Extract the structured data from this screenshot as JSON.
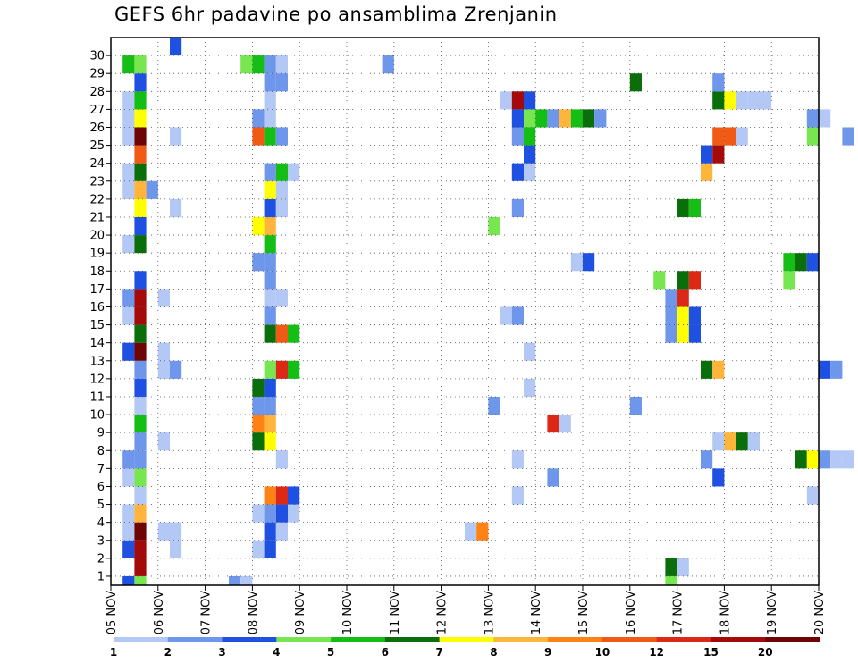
{
  "chart_data": {
    "type": "heatmap",
    "title": "GEFS 6hr padavine po ansamblima Zrenjanin",
    "members": [
      "1",
      "2",
      "3",
      "4",
      "5",
      "6",
      "7",
      "8",
      "9",
      "10",
      "11",
      "12",
      "13",
      "14",
      "15",
      "16",
      "17",
      "18",
      "19",
      "20",
      "21",
      "22",
      "23",
      "24",
      "25",
      "26",
      "27",
      "28",
      "29",
      "30"
    ],
    "x_tick_labels": [
      "05 NOV",
      "06 NOV",
      "07 NOV",
      "08 NOV",
      "09 NOV",
      "10 NOV",
      "11 NOV",
      "12 NOV",
      "13 NOV",
      "14 NOV",
      "15 NOV",
      "16 NOV",
      "17 NOV",
      "18 NOV",
      "19 NOV",
      "20 NOV"
    ],
    "x_range_days": [
      0,
      15
    ],
    "time_step_hours": 6,
    "grid": true,
    "colorbar": {
      "levels": [
        "1",
        "2",
        "3",
        "4",
        "5",
        "6",
        "7",
        "8",
        "9",
        "10",
        "12",
        "15",
        "20"
      ],
      "colors": [
        "#b4c8f5",
        "#6e96eb",
        "#1e50e1",
        "#78e650",
        "#14be14",
        "#0a6e0a",
        "#ffff00",
        "#ffb43c",
        "#ff8214",
        "#f05a14",
        "#dc2814",
        "#a50a0a",
        "#6e0505"
      ]
    },
    "cells": {
      "30": [
        [
          6,
          3
        ]
      ],
      "29": [
        [
          2,
          5
        ],
        [
          3,
          4
        ],
        [
          12,
          4
        ],
        [
          13,
          5
        ],
        [
          14,
          2
        ],
        [
          15,
          1
        ],
        [
          24,
          2
        ],
        [
          69,
          3
        ],
        [
          70,
          7
        ],
        [
          84,
          1
        ]
      ],
      "28": [
        [
          3,
          3
        ],
        [
          14,
          2
        ],
        [
          15,
          2
        ],
        [
          45,
          6
        ],
        [
          52,
          2
        ]
      ],
      "27": [
        [
          2,
          1
        ],
        [
          3,
          5
        ],
        [
          14,
          1
        ],
        [
          34,
          1
        ],
        [
          35,
          12
        ],
        [
          36,
          3
        ],
        [
          52,
          6
        ],
        [
          53,
          7
        ],
        [
          54,
          1
        ],
        [
          55,
          1
        ],
        [
          56,
          1
        ]
      ],
      "26": [
        [
          2,
          1
        ],
        [
          3,
          7
        ],
        [
          13,
          2
        ],
        [
          14,
          1
        ],
        [
          35,
          3
        ],
        [
          36,
          4
        ],
        [
          37,
          5
        ],
        [
          38,
          2
        ],
        [
          39,
          8
        ],
        [
          40,
          5
        ],
        [
          41,
          6
        ],
        [
          42,
          2
        ],
        [
          60,
          2
        ],
        [
          61,
          1
        ]
      ],
      "25": [
        [
          2,
          1
        ],
        [
          3,
          13
        ],
        [
          6,
          1
        ],
        [
          13,
          10
        ],
        [
          14,
          5
        ],
        [
          15,
          2
        ],
        [
          35,
          2
        ],
        [
          36,
          5
        ],
        [
          52,
          10
        ],
        [
          53,
          10
        ],
        [
          54,
          1
        ],
        [
          60,
          4
        ],
        [
          63,
          2
        ],
        [
          66,
          1
        ],
        [
          76,
          13
        ],
        [
          77,
          10
        ],
        [
          79,
          3
        ],
        [
          80,
          2
        ]
      ],
      "24": [
        [
          3,
          10
        ],
        [
          36,
          3
        ],
        [
          51,
          3
        ],
        [
          52,
          12
        ]
      ],
      "23": [
        [
          2,
          1
        ],
        [
          3,
          6
        ],
        [
          14,
          2
        ],
        [
          15,
          5
        ],
        [
          16,
          1
        ],
        [
          35,
          3
        ],
        [
          36,
          1
        ],
        [
          51,
          8
        ],
        [
          74,
          2
        ]
      ],
      "22": [
        [
          2,
          1
        ],
        [
          3,
          8
        ],
        [
          4,
          2
        ],
        [
          14,
          7
        ],
        [
          15,
          1
        ],
        [
          65,
          1
        ],
        [
          66,
          6
        ],
        [
          68,
          1
        ]
      ],
      "21": [
        [
          3,
          7
        ],
        [
          6,
          1
        ],
        [
          14,
          3
        ],
        [
          15,
          1
        ],
        [
          35,
          2
        ],
        [
          49,
          6
        ],
        [
          50,
          5
        ],
        [
          87,
          2
        ]
      ],
      "20": [
        [
          3,
          3
        ],
        [
          13,
          7
        ],
        [
          14,
          8
        ],
        [
          33,
          4
        ]
      ],
      "19": [
        [
          2,
          1
        ],
        [
          3,
          6
        ],
        [
          14,
          5
        ],
        [
          80,
          1
        ]
      ],
      "18": [
        [
          13,
          2
        ],
        [
          14,
          2
        ],
        [
          40,
          1
        ],
        [
          41,
          3
        ],
        [
          58,
          5
        ],
        [
          59,
          6
        ],
        [
          60,
          3
        ],
        [
          65,
          1
        ],
        [
          66,
          2
        ],
        [
          74,
          2
        ],
        [
          75,
          1
        ],
        [
          77,
          1
        ],
        [
          78,
          6
        ],
        [
          79,
          5
        ],
        [
          80,
          3
        ],
        [
          81,
          1
        ],
        [
          82,
          5
        ]
      ],
      "17": [
        [
          3,
          3
        ],
        [
          14,
          2
        ],
        [
          47,
          4
        ],
        [
          49,
          6
        ],
        [
          50,
          11
        ],
        [
          58,
          4
        ]
      ],
      "16": [
        [
          2,
          2
        ],
        [
          3,
          12
        ],
        [
          5,
          1
        ],
        [
          14,
          1
        ],
        [
          15,
          1
        ],
        [
          48,
          2
        ],
        [
          49,
          11
        ]
      ],
      "15": [
        [
          2,
          1
        ],
        [
          3,
          12
        ],
        [
          14,
          2
        ],
        [
          34,
          1
        ],
        [
          35,
          2
        ],
        [
          48,
          2
        ],
        [
          49,
          7
        ],
        [
          50,
          3
        ]
      ],
      "14": [
        [
          3,
          6
        ],
        [
          14,
          6
        ],
        [
          15,
          10
        ],
        [
          16,
          5
        ],
        [
          48,
          2
        ],
        [
          49,
          7
        ],
        [
          50,
          3
        ]
      ],
      "13": [
        [
          2,
          3
        ],
        [
          3,
          13
        ],
        [
          5,
          1
        ],
        [
          36,
          1
        ],
        [
          74,
          1
        ]
      ],
      "12": [
        [
          3,
          2
        ],
        [
          5,
          1
        ],
        [
          6,
          2
        ],
        [
          14,
          4
        ],
        [
          15,
          11
        ],
        [
          16,
          5
        ],
        [
          51,
          6
        ],
        [
          52,
          8
        ],
        [
          61,
          3
        ],
        [
          62,
          2
        ],
        [
          80,
          4
        ]
      ],
      "11": [
        [
          3,
          3
        ],
        [
          13,
          6
        ],
        [
          14,
          3
        ],
        [
          36,
          1
        ],
        [
          74,
          2
        ],
        [
          79,
          2
        ],
        [
          80,
          2
        ],
        [
          81,
          3
        ]
      ],
      "10": [
        [
          3,
          1
        ],
        [
          13,
          2
        ],
        [
          14,
          2
        ],
        [
          33,
          2
        ],
        [
          45,
          2
        ]
      ],
      "9": [
        [
          3,
          5
        ],
        [
          13,
          9
        ],
        [
          14,
          8
        ],
        [
          38,
          11
        ],
        [
          39,
          1
        ]
      ],
      "8": [
        [
          3,
          2
        ],
        [
          5,
          1
        ],
        [
          13,
          6
        ],
        [
          14,
          7
        ],
        [
          52,
          1
        ],
        [
          53,
          8
        ],
        [
          54,
          6
        ],
        [
          55,
          1
        ]
      ],
      "7": [
        [
          2,
          2
        ],
        [
          3,
          2
        ],
        [
          15,
          1
        ],
        [
          35,
          1
        ],
        [
          51,
          2
        ],
        [
          59,
          6
        ],
        [
          60,
          7
        ],
        [
          61,
          2
        ],
        [
          62,
          1
        ],
        [
          63,
          1
        ],
        [
          66,
          3
        ]
      ],
      "6": [
        [
          2,
          1
        ],
        [
          3,
          4
        ],
        [
          38,
          2
        ],
        [
          52,
          3
        ],
        [
          78,
          2
        ],
        [
          79,
          3
        ]
      ],
      "5": [
        [
          3,
          1
        ],
        [
          14,
          9
        ],
        [
          15,
          11
        ],
        [
          16,
          3
        ],
        [
          35,
          1
        ],
        [
          60,
          1
        ],
        [
          82,
          5
        ],
        [
          83,
          5
        ],
        [
          84,
          12
        ],
        [
          85,
          1
        ]
      ],
      "4": [
        [
          2,
          1
        ],
        [
          3,
          8
        ],
        [
          13,
          1
        ],
        [
          14,
          2
        ],
        [
          15,
          3
        ],
        [
          16,
          1
        ],
        [
          74,
          1
        ]
      ],
      "3": [
        [
          2,
          1
        ],
        [
          3,
          13
        ],
        [
          5,
          1
        ],
        [
          6,
          1
        ],
        [
          14,
          3
        ],
        [
          15,
          1
        ],
        [
          31,
          1
        ],
        [
          32,
          9
        ]
      ],
      "2": [
        [
          2,
          3
        ],
        [
          3,
          12
        ],
        [
          6,
          1
        ],
        [
          13,
          1
        ],
        [
          14,
          3
        ]
      ],
      "1": [
        [
          3,
          12
        ],
        [
          48,
          6
        ],
        [
          49,
          1
        ],
        [
          76,
          1
        ],
        [
          77,
          4
        ],
        [
          78,
          12
        ],
        [
          79,
          12
        ],
        [
          80,
          2
        ]
      ],
      "0": [
        [
          2,
          3
        ],
        [
          3,
          4
        ],
        [
          11,
          2
        ],
        [
          12,
          1
        ],
        [
          48,
          4
        ],
        [
          67,
          4
        ],
        [
          68,
          3
        ]
      ]
    }
  }
}
